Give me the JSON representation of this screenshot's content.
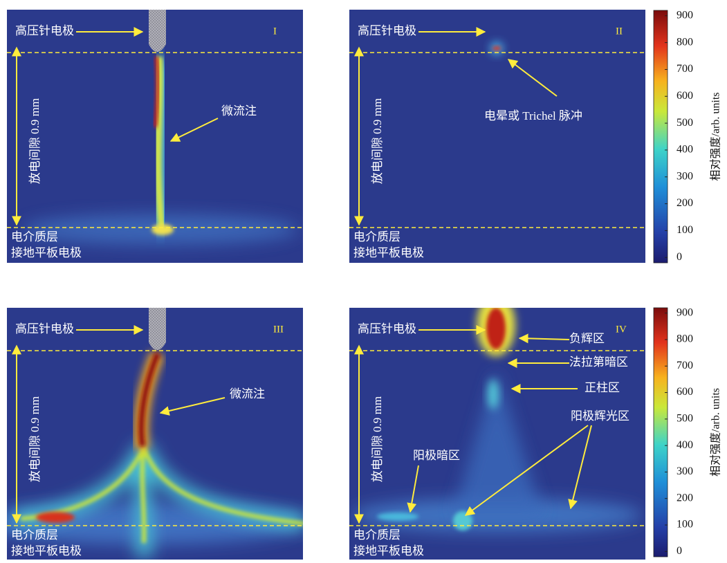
{
  "panels": [
    {
      "numeral": "I",
      "needle_label": "高压针电极",
      "gap_label": "放电间隙 0.9 mm",
      "dielectric_label": "电介质层",
      "ground_label": "接地平板电极",
      "annotations": [
        "微流注"
      ]
    },
    {
      "numeral": "II",
      "needle_label": "高压针电极",
      "gap_label": "放电间隙 0.9 mm",
      "dielectric_label": "电介质层",
      "ground_label": "接地平板电极",
      "annotations": [
        "电晕或 Trichel 脉冲"
      ]
    },
    {
      "numeral": "III",
      "needle_label": "高压针电极",
      "gap_label": "放电间隙 0.9 mm",
      "dielectric_label": "电介质层",
      "ground_label": "接地平板电极",
      "annotations": [
        "微流注"
      ]
    },
    {
      "numeral": "IV",
      "needle_label": "高压针电极",
      "gap_label": "放电间隙 0.9 mm",
      "dielectric_label": "电介质层",
      "ground_label": "接地平板电极",
      "annotations": [
        "负辉区",
        "法拉第暗区",
        "正柱区",
        "阳极辉光区",
        "阳极暗区"
      ]
    }
  ],
  "colorbars": [
    {
      "label": "相对强度/arb. units",
      "lim": [
        -20,
        920
      ],
      "ticks": [
        0,
        100,
        200,
        300,
        400,
        500,
        600,
        700,
        800,
        900
      ]
    },
    {
      "label": "相对强度/arb. units",
      "lim": [
        -20,
        920
      ],
      "ticks": [
        0,
        100,
        200,
        300,
        400,
        500,
        600,
        700,
        800,
        900
      ]
    }
  ]
}
